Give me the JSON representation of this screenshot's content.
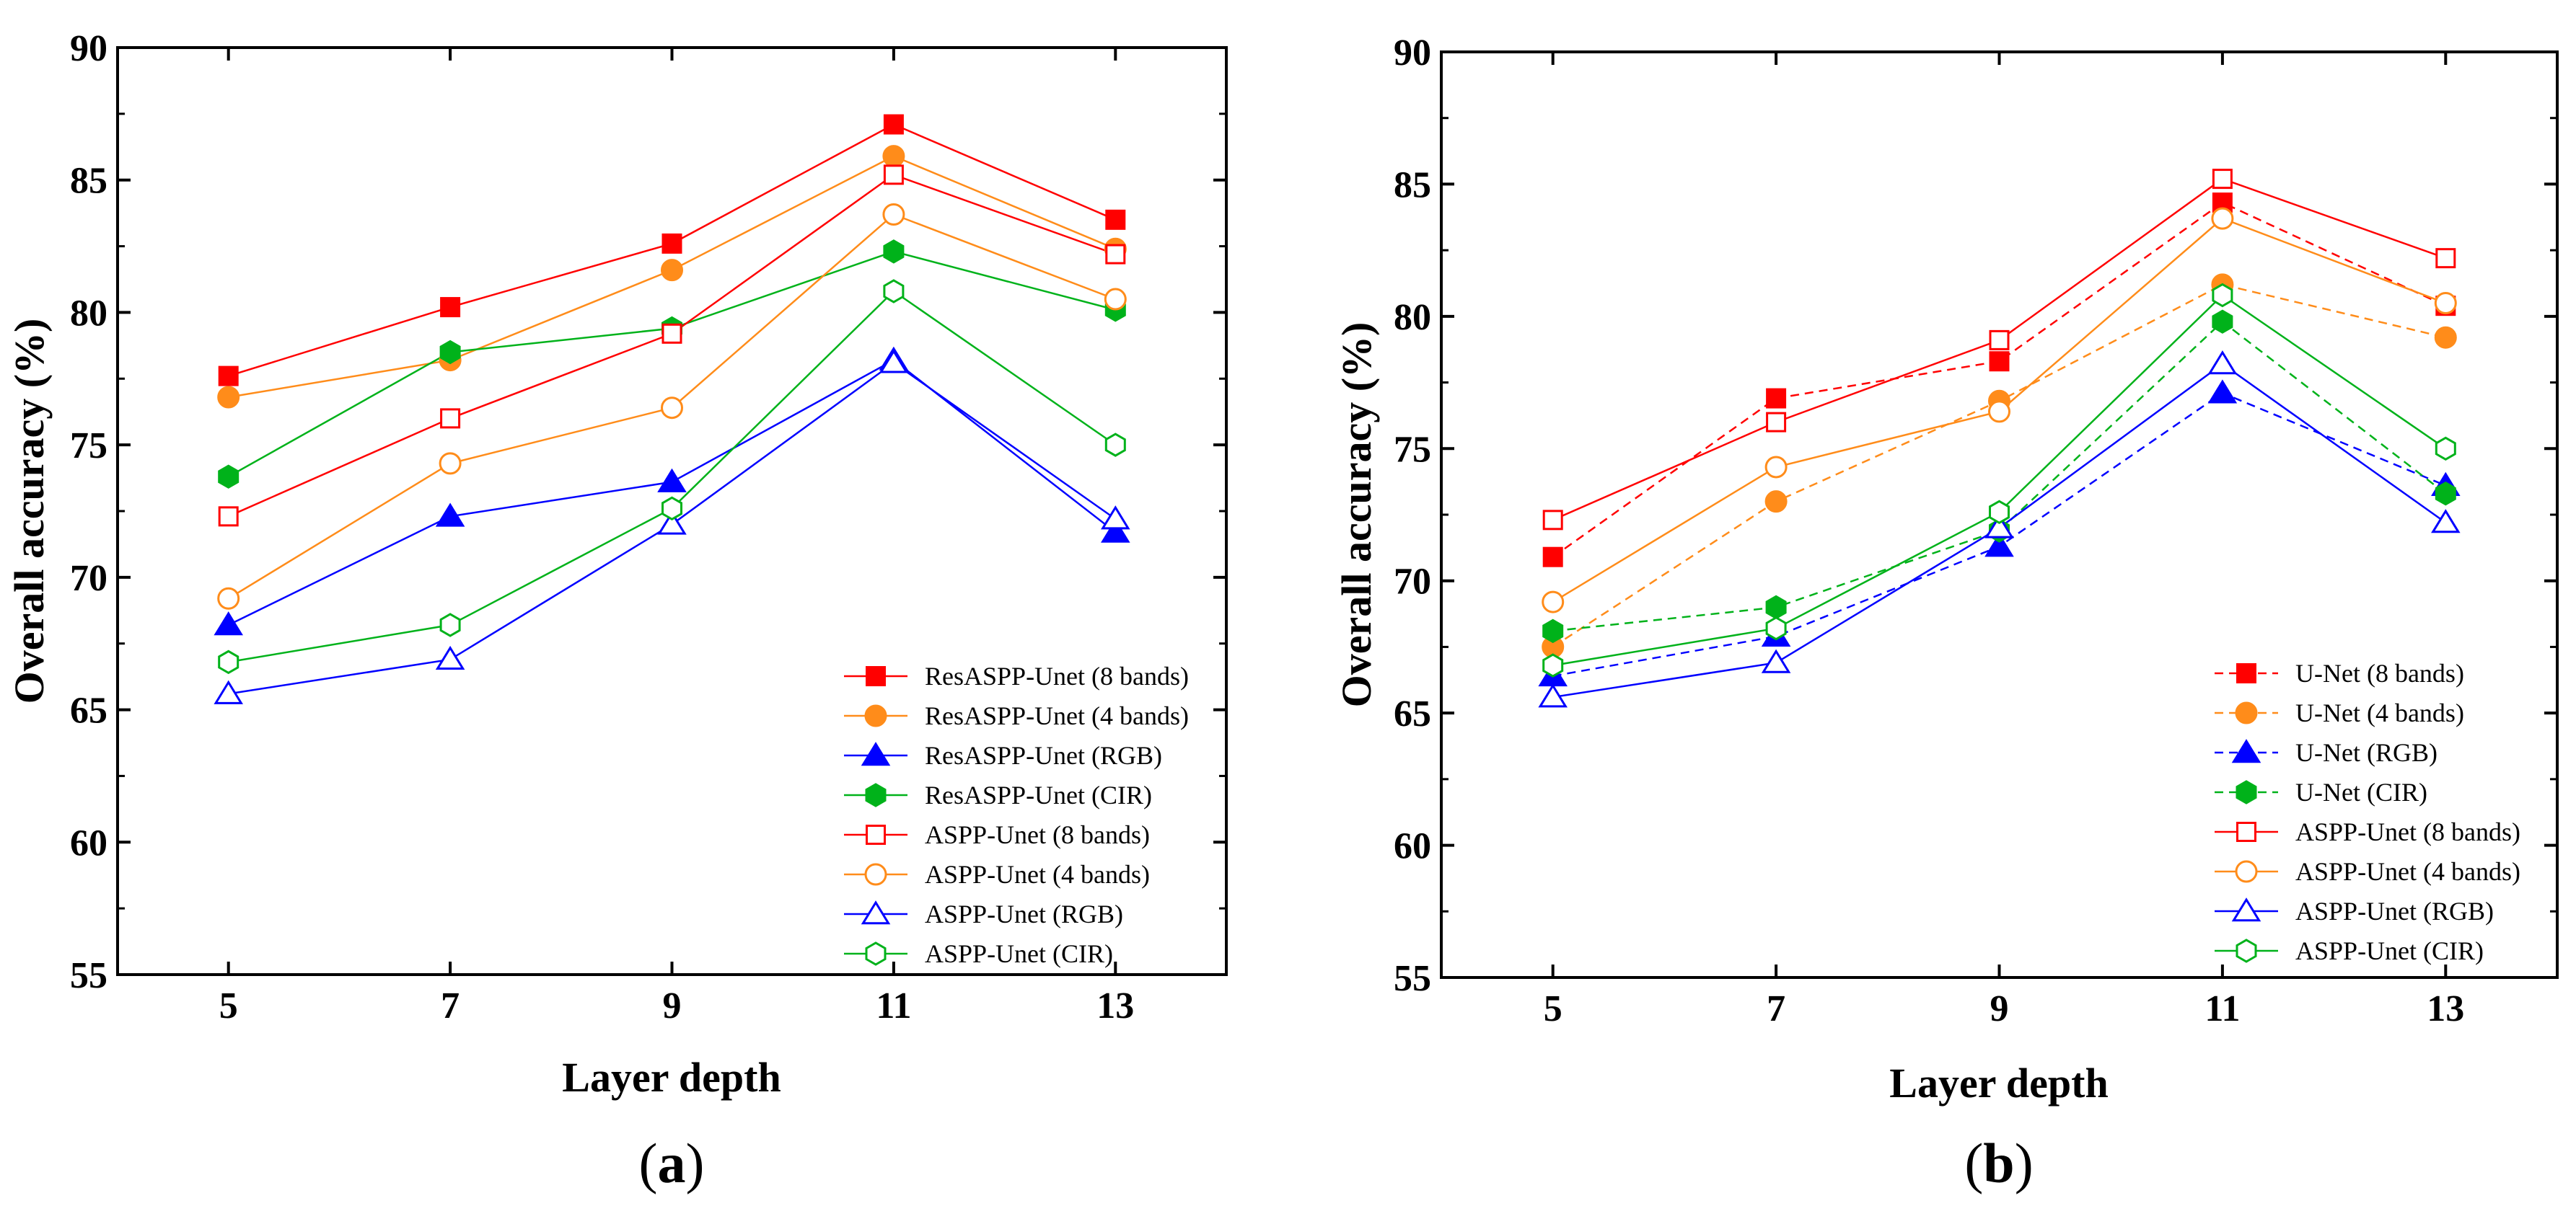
{
  "chart_data": [
    {
      "type": "line",
      "panel_label": {
        "open": "(",
        "letter": "a",
        "close": ")"
      },
      "xlabel": "Layer depth",
      "ylabel": "Overall accuracy (%)",
      "x": [
        5,
        7,
        9,
        11,
        13
      ],
      "xticks": [
        "5",
        "7",
        "9",
        "11",
        "13"
      ],
      "xlim": [
        4,
        14
      ],
      "ylim": [
        55,
        90
      ],
      "yticks": [
        "55",
        "60",
        "65",
        "70",
        "75",
        "80",
        "85",
        "90"
      ],
      "legend_position": "bottom-right",
      "series": [
        {
          "name": "ResASPP-Unet (8 bands)",
          "color": "#ff0000",
          "marker": "square",
          "filled": true,
          "dashed": false,
          "values": [
            77.6,
            80.2,
            82.6,
            87.1,
            83.5
          ]
        },
        {
          "name": "ResASPP-Unet (4 bands)",
          "color": "#ff8c1a",
          "marker": "circle",
          "filled": true,
          "dashed": false,
          "values": [
            76.8,
            78.2,
            81.6,
            85.9,
            82.4
          ]
        },
        {
          "name": "ResASPP-Unet (RGB)",
          "color": "#0000ff",
          "marker": "triangle",
          "filled": true,
          "dashed": false,
          "values": [
            68.2,
            72.3,
            73.6,
            78.2,
            71.7
          ]
        },
        {
          "name": "ResASPP-Unet (CIR)",
          "color": "#00b21a",
          "marker": "hexagon",
          "filled": true,
          "dashed": false,
          "values": [
            73.8,
            78.5,
            79.4,
            82.3,
            80.1
          ]
        },
        {
          "name": "ASPP-Unet (8 bands)",
          "color": "#ff0000",
          "marker": "square",
          "filled": false,
          "dashed": false,
          "values": [
            72.3,
            76.0,
            79.2,
            85.2,
            82.2
          ]
        },
        {
          "name": "ASPP-Unet (4 bands)",
          "color": "#ff8c1a",
          "marker": "circle",
          "filled": false,
          "dashed": false,
          "values": [
            69.2,
            74.3,
            76.4,
            83.7,
            80.5
          ]
        },
        {
          "name": "ASPP-Unet (RGB)",
          "color": "#0000ff",
          "marker": "triangle",
          "filled": false,
          "dashed": false,
          "values": [
            65.6,
            66.9,
            72.0,
            78.1,
            72.2
          ]
        },
        {
          "name": "ASPP-Unet (CIR)",
          "color": "#00b21a",
          "marker": "hexagon",
          "filled": false,
          "dashed": false,
          "values": [
            66.8,
            68.2,
            72.6,
            80.8,
            75.0
          ]
        }
      ]
    },
    {
      "type": "line",
      "panel_label": {
        "open": "(",
        "letter": "b",
        "close": ")"
      },
      "xlabel": "Layer depth",
      "ylabel": "Overall accuracy (%)",
      "x": [
        5,
        7,
        9,
        11,
        13
      ],
      "xticks": [
        "5",
        "7",
        "9",
        "11",
        "13"
      ],
      "xlim": [
        4,
        14
      ],
      "ylim": [
        55,
        90
      ],
      "yticks": [
        "55",
        "60",
        "65",
        "70",
        "75",
        "80",
        "85",
        "90"
      ],
      "legend_position": "bottom-right",
      "series": [
        {
          "name": "U-Net (8 bands)",
          "color": "#ff0000",
          "marker": "square",
          "filled": true,
          "dashed": true,
          "values": [
            70.9,
            76.9,
            78.3,
            84.3,
            80.4
          ]
        },
        {
          "name": "U-Net (4 bands)",
          "color": "#ff8c1a",
          "marker": "circle",
          "filled": true,
          "dashed": true,
          "values": [
            67.5,
            73.0,
            76.8,
            81.2,
            79.2
          ]
        },
        {
          "name": "U-Net (RGB)",
          "color": "#0000ff",
          "marker": "triangle",
          "filled": true,
          "dashed": true,
          "values": [
            66.4,
            67.9,
            71.3,
            77.1,
            73.6
          ]
        },
        {
          "name": "U-Net (CIR)",
          "color": "#00b21a",
          "marker": "hexagon",
          "filled": true,
          "dashed": true,
          "values": [
            68.1,
            69.0,
            71.9,
            79.8,
            73.3
          ]
        },
        {
          "name": "ASPP-Unet (8 bands)",
          "color": "#ff0000",
          "marker": "square",
          "filled": false,
          "dashed": false,
          "values": [
            72.3,
            76.0,
            79.1,
            85.2,
            82.2
          ]
        },
        {
          "name": "ASPP-Unet (4 bands)",
          "color": "#ff8c1a",
          "marker": "circle",
          "filled": false,
          "dashed": false,
          "values": [
            69.2,
            74.3,
            76.4,
            83.7,
            80.5
          ]
        },
        {
          "name": "ASPP-Unet (RGB)",
          "color": "#0000ff",
          "marker": "triangle",
          "filled": false,
          "dashed": false,
          "values": [
            65.6,
            66.9,
            72.0,
            78.2,
            72.2
          ]
        },
        {
          "name": "ASPP-Unet (CIR)",
          "color": "#00b21a",
          "marker": "hexagon",
          "filled": false,
          "dashed": false,
          "values": [
            66.8,
            68.2,
            72.6,
            80.8,
            75.0
          ]
        }
      ]
    }
  ]
}
